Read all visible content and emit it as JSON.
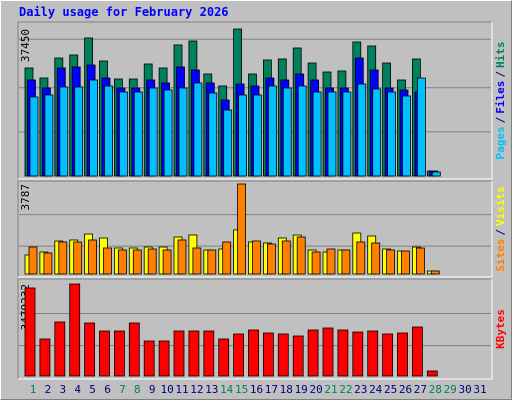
{
  "chart_data": [
    {
      "type": "bar",
      "title": "Daily usage for February 2026",
      "legend_separator": "/",
      "ylim": [
        0,
        37450
      ],
      "yticks": [
        37450
      ],
      "grid": true,
      "series": [
        {
          "name": "Hits",
          "color": "#00805c",
          "values": [
            27518,
            24970,
            30066,
            30831,
            35162,
            29302,
            24716,
            24716,
            28538,
            27518,
            33379,
            34398,
            25990,
            22932,
            37450,
            25990,
            29557,
            29812,
            32614,
            28792,
            26499,
            26754,
            34143,
            33124,
            28792,
            24461,
            29812,
            1274,
            null,
            null,
            null
          ]
        },
        {
          "name": "Files",
          "color": "#0000ff",
          "values": [
            24461,
            22422,
            27518,
            27773,
            28283,
            24970,
            22422,
            22422,
            24461,
            23696,
            27773,
            27009,
            23696,
            19365,
            23442,
            22932,
            24970,
            24461,
            25990,
            24461,
            22422,
            22422,
            30066,
            27009,
            22422,
            21913,
            21403,
            1274,
            null,
            null,
            null
          ]
        },
        {
          "name": "Pages",
          "color": "#00c0ff",
          "values": [
            20129,
            20639,
            22677,
            22677,
            24461,
            22932,
            21403,
            21403,
            22422,
            21913,
            22422,
            23696,
            21148,
            16817,
            20639,
            20639,
            22932,
            22422,
            22932,
            21403,
            21403,
            21403,
            23442,
            22168,
            21403,
            20384,
            24970,
            1019,
            null,
            null,
            null
          ]
        }
      ]
    },
    {
      "type": "bar",
      "legend_separator": "/",
      "ylim": [
        0,
        3787
      ],
      "yticks": [
        3787
      ],
      "grid": true,
      "series": [
        {
          "name": "Visits",
          "color": "#ffff00",
          "values": [
            800,
            926,
            1389,
            1431,
            1683,
            1515,
            1094,
            1094,
            1136,
            1136,
            1557,
            1641,
            1010,
            1052,
            1852,
            1347,
            1304,
            1515,
            1641,
            1010,
            926,
            1010,
            1725,
            1599,
            1052,
            968,
            1136,
            126,
            null,
            null,
            null
          ]
        },
        {
          "name": "Sites",
          "color": "#ff8000",
          "values": [
            1136,
            884,
            1347,
            1347,
            1431,
            1094,
            1010,
            1010,
            1052,
            1010,
            1431,
            1094,
            1010,
            1347,
            3787,
            1389,
            1262,
            1389,
            1557,
            926,
            1052,
            1010,
            1347,
            1304,
            1010,
            968,
            1094,
            126,
            null,
            null,
            null
          ]
        }
      ]
    },
    {
      "type": "bar",
      "ylim": [
        0,
        3479232
      ],
      "yticks": [
        3479232
      ],
      "grid": true,
      "categories": [
        "1",
        "2",
        "3",
        "4",
        "5",
        "6",
        "7",
        "8",
        "9",
        "10",
        "11",
        "12",
        "13",
        "14",
        "15",
        "16",
        "17",
        "18",
        "19",
        "20",
        "21",
        "22",
        "23",
        "24",
        "25",
        "26",
        "27",
        "28",
        "29",
        "30",
        "31"
      ],
      "category_colors": [
        "#00805c",
        "#000080",
        "#000080",
        "#000080",
        "#000080",
        "#000080",
        "#00805c",
        "#00805c",
        "#000080",
        "#000080",
        "#000080",
        "#000080",
        "#000080",
        "#00805c",
        "#00805c",
        "#000080",
        "#000080",
        "#000080",
        "#000080",
        "#000080",
        "#00805c",
        "#00805c",
        "#000080",
        "#000080",
        "#000080",
        "#000080",
        "#000080",
        "#00805c",
        "#00805c",
        "#000080",
        "#000080"
      ],
      "series": [
        {
          "name": "KBytes",
          "color": "#ff0000",
          "values": [
            3327984,
            1399266,
            2042172,
            3479232,
            2004354,
            1701810,
            1701810,
            2004354,
            1323630,
            1323630,
            1701810,
            1701810,
            1701810,
            1399266,
            1588356,
            1739628,
            1626174,
            1588356,
            1512720,
            1739628,
            1815264,
            1739628,
            1663992,
            1701810,
            1588356,
            1626174,
            1853082,
            189090,
            null,
            null,
            null
          ]
        }
      ]
    }
  ]
}
